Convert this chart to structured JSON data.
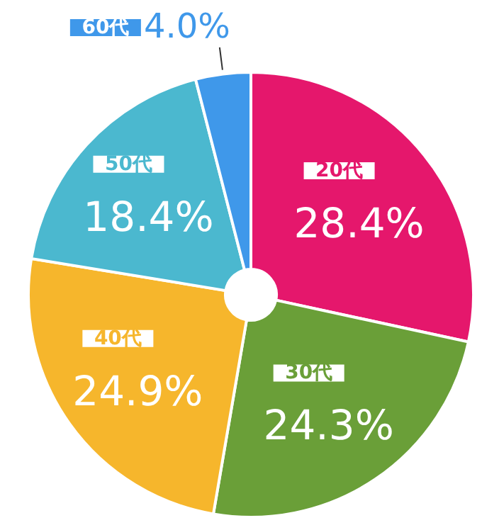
{
  "chart_data": {
    "type": "pie",
    "categories": [
      "20代",
      "30代",
      "40代",
      "50代",
      "60代"
    ],
    "values": [
      28.4,
      24.3,
      24.9,
      18.4,
      4.0
    ],
    "value_labels": [
      "28.4%",
      "24.3%",
      "24.9%",
      "18.4%",
      "4.0%"
    ],
    "colors": [
      "#e5176c",
      "#6a9f38",
      "#f6b62c",
      "#4bb8cf",
      "#3f98ea"
    ]
  }
}
